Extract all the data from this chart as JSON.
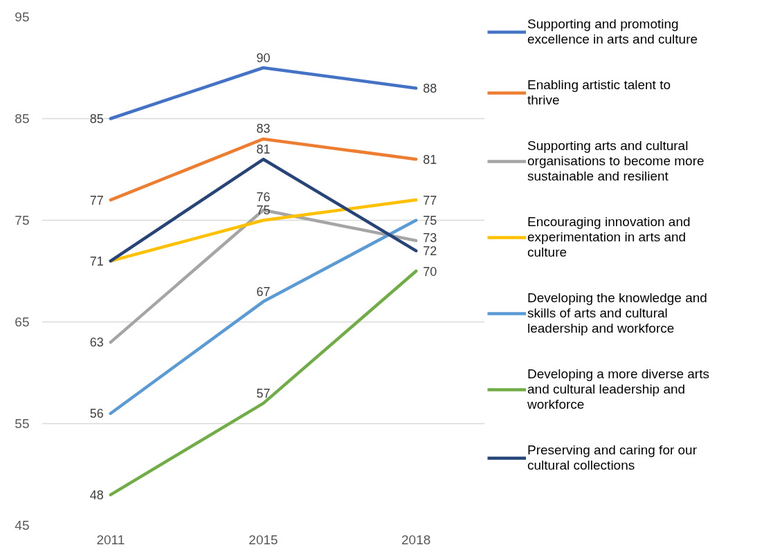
{
  "chart_data": {
    "type": "line",
    "categories": [
      "2011",
      "2015",
      "2018"
    ],
    "ylim": [
      45,
      95
    ],
    "yticks": [
      45,
      55,
      65,
      75,
      85,
      95
    ],
    "grid": "y",
    "legend": "right",
    "line_style": "solid",
    "series": [
      {
        "name": "Supporting and promoting excellence in arts and culture",
        "color": "#4472c4",
        "values": [
          85,
          90,
          88
        ],
        "value_labels": [
          "85",
          "90",
          "88"
        ]
      },
      {
        "name": "Enabling artistic talent to thrive",
        "color": "#ed7d31",
        "values": [
          77,
          83,
          81
        ],
        "value_labels": [
          "77",
          "83",
          "81"
        ]
      },
      {
        "name": "Supporting arts and cultural organisations to become more sustainable and resilient",
        "color": "#a5a5a5",
        "values": [
          63,
          76,
          73
        ],
        "value_labels": [
          "63",
          "76",
          "73"
        ]
      },
      {
        "name": "Encouraging innovation and experimentation in arts and culture",
        "color": "#ffc000",
        "values": [
          71,
          75,
          77
        ],
        "value_labels": [
          "71",
          "75",
          "77"
        ]
      },
      {
        "name": "Developing the knowledge and skills of arts and cultural leadership and workforce",
        "color": "#5b9bd5",
        "values": [
          56,
          67,
          75
        ],
        "value_labels": [
          "56",
          "67",
          "75"
        ]
      },
      {
        "name": "Developing a more diverse arts and cultural leadership and workforce",
        "color": "#70ad47",
        "values": [
          48,
          57,
          70
        ],
        "value_labels": [
          "48",
          "57",
          "70"
        ]
      },
      {
        "name": "Preserving and caring for our cultural collections",
        "color": "#264478",
        "values": [
          71,
          81,
          72
        ],
        "value_labels": [
          null,
          "81",
          "72"
        ]
      }
    ]
  }
}
